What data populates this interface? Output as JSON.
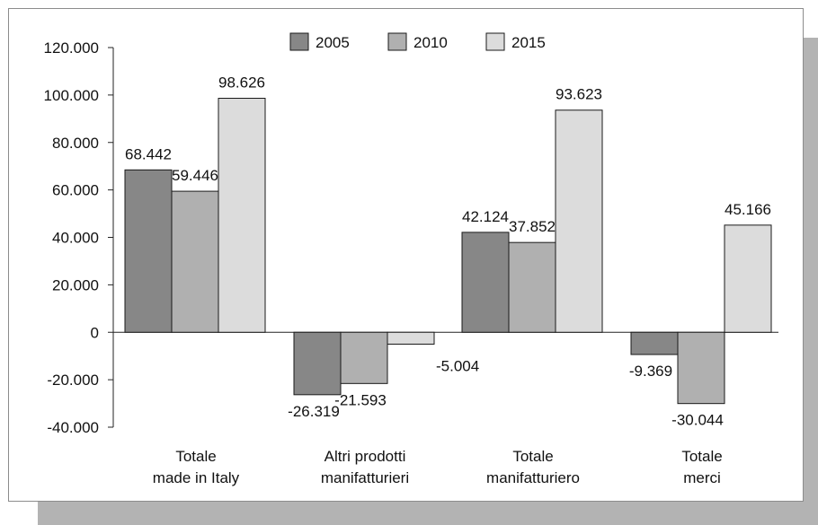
{
  "chart_data": {
    "type": "bar",
    "title": "",
    "xlabel": "",
    "ylabel": "",
    "categories": [
      [
        "Totale",
        "made in Italy"
      ],
      [
        "Altri prodotti",
        "manifatturieri"
      ],
      [
        "Totale",
        "manifatturiero"
      ],
      [
        "Totale",
        "merci"
      ]
    ],
    "series": [
      {
        "name": "2005",
        "color": "#878787",
        "values": [
          68442,
          -26319,
          42124,
          -9369
        ],
        "labels": [
          "68.442",
          "-26.319",
          "42.124",
          "-9.369"
        ]
      },
      {
        "name": "2010",
        "color": "#b0b0b0",
        "values": [
          59446,
          -21593,
          37852,
          -30044
        ],
        "labels": [
          "59.446",
          "-21.593",
          "37.852",
          "-30.044"
        ]
      },
      {
        "name": "2015",
        "color": "#dcdcdc",
        "values": [
          98626,
          -5004,
          93623,
          45166
        ],
        "labels": [
          "98.626",
          "-5.004",
          "93.623",
          "45.166"
        ]
      }
    ],
    "ylim": [
      -40000,
      120000
    ],
    "yticks": [
      120000,
      100000,
      80000,
      60000,
      40000,
      20000,
      0,
      -20000,
      -40000
    ],
    "ytick_labels": [
      "120.000",
      "100.000",
      "80.000",
      "60.000",
      "40.000",
      "20.000",
      "0",
      "-20.000",
      "-40.000"
    ],
    "legend_position": "top",
    "grid": false
  }
}
